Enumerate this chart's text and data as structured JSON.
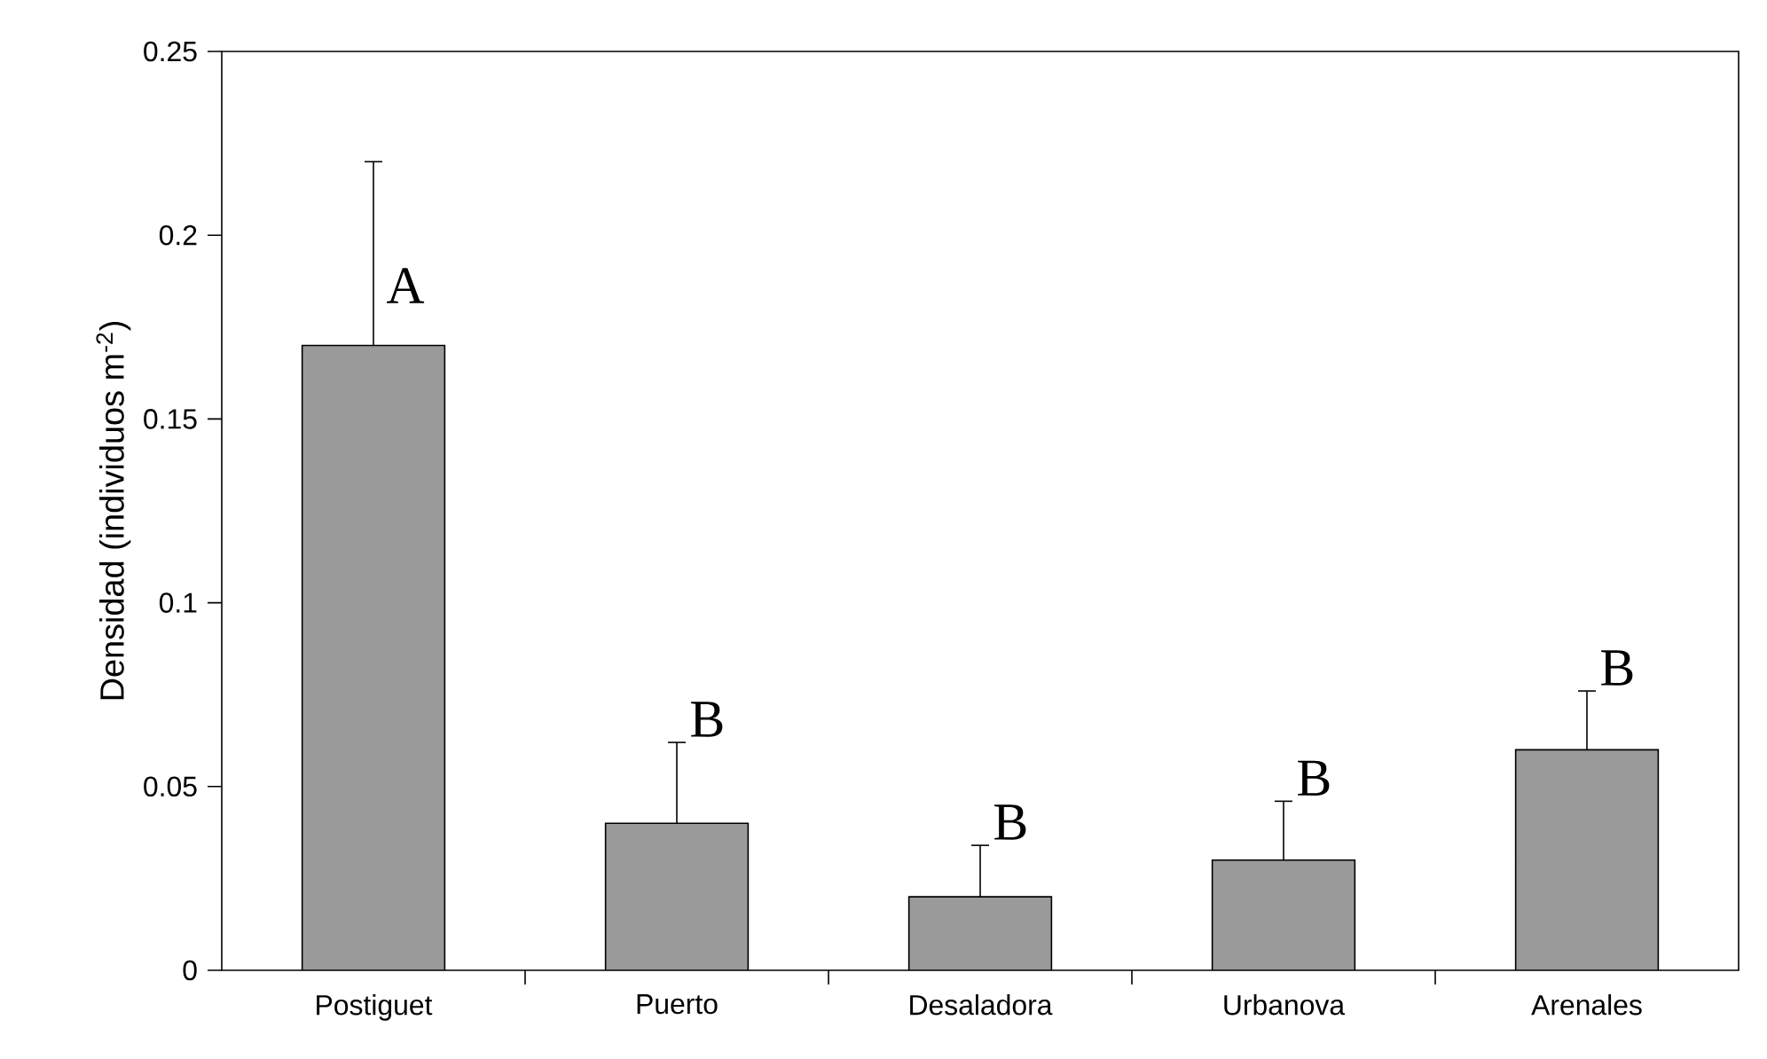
{
  "chart_data": {
    "type": "bar",
    "ylabel": "Densidad (individuos m$^{-2}$)",
    "categories": [
      "Postiguet",
      "Puerto",
      "Desaladora",
      "Urbanova",
      "Arenales"
    ],
    "values": [
      0.17,
      0.04,
      0.02,
      0.03,
      0.06
    ],
    "errors": [
      [
        0.17,
        0.22
      ],
      [
        0.04,
        0.062
      ],
      [
        0.02,
        0.034
      ],
      [
        0.03,
        0.046
      ],
      [
        0.06,
        0.076
      ]
    ],
    "color": "#9a9a9a",
    "ylim": [
      0,
      0.25
    ],
    "yticks": [
      0,
      0.05,
      0.1,
      0.15,
      0.2,
      0.25
    ],
    "grid": false,
    "annotations": [
      "A",
      "B",
      "B",
      "B",
      "B"
    ]
  }
}
